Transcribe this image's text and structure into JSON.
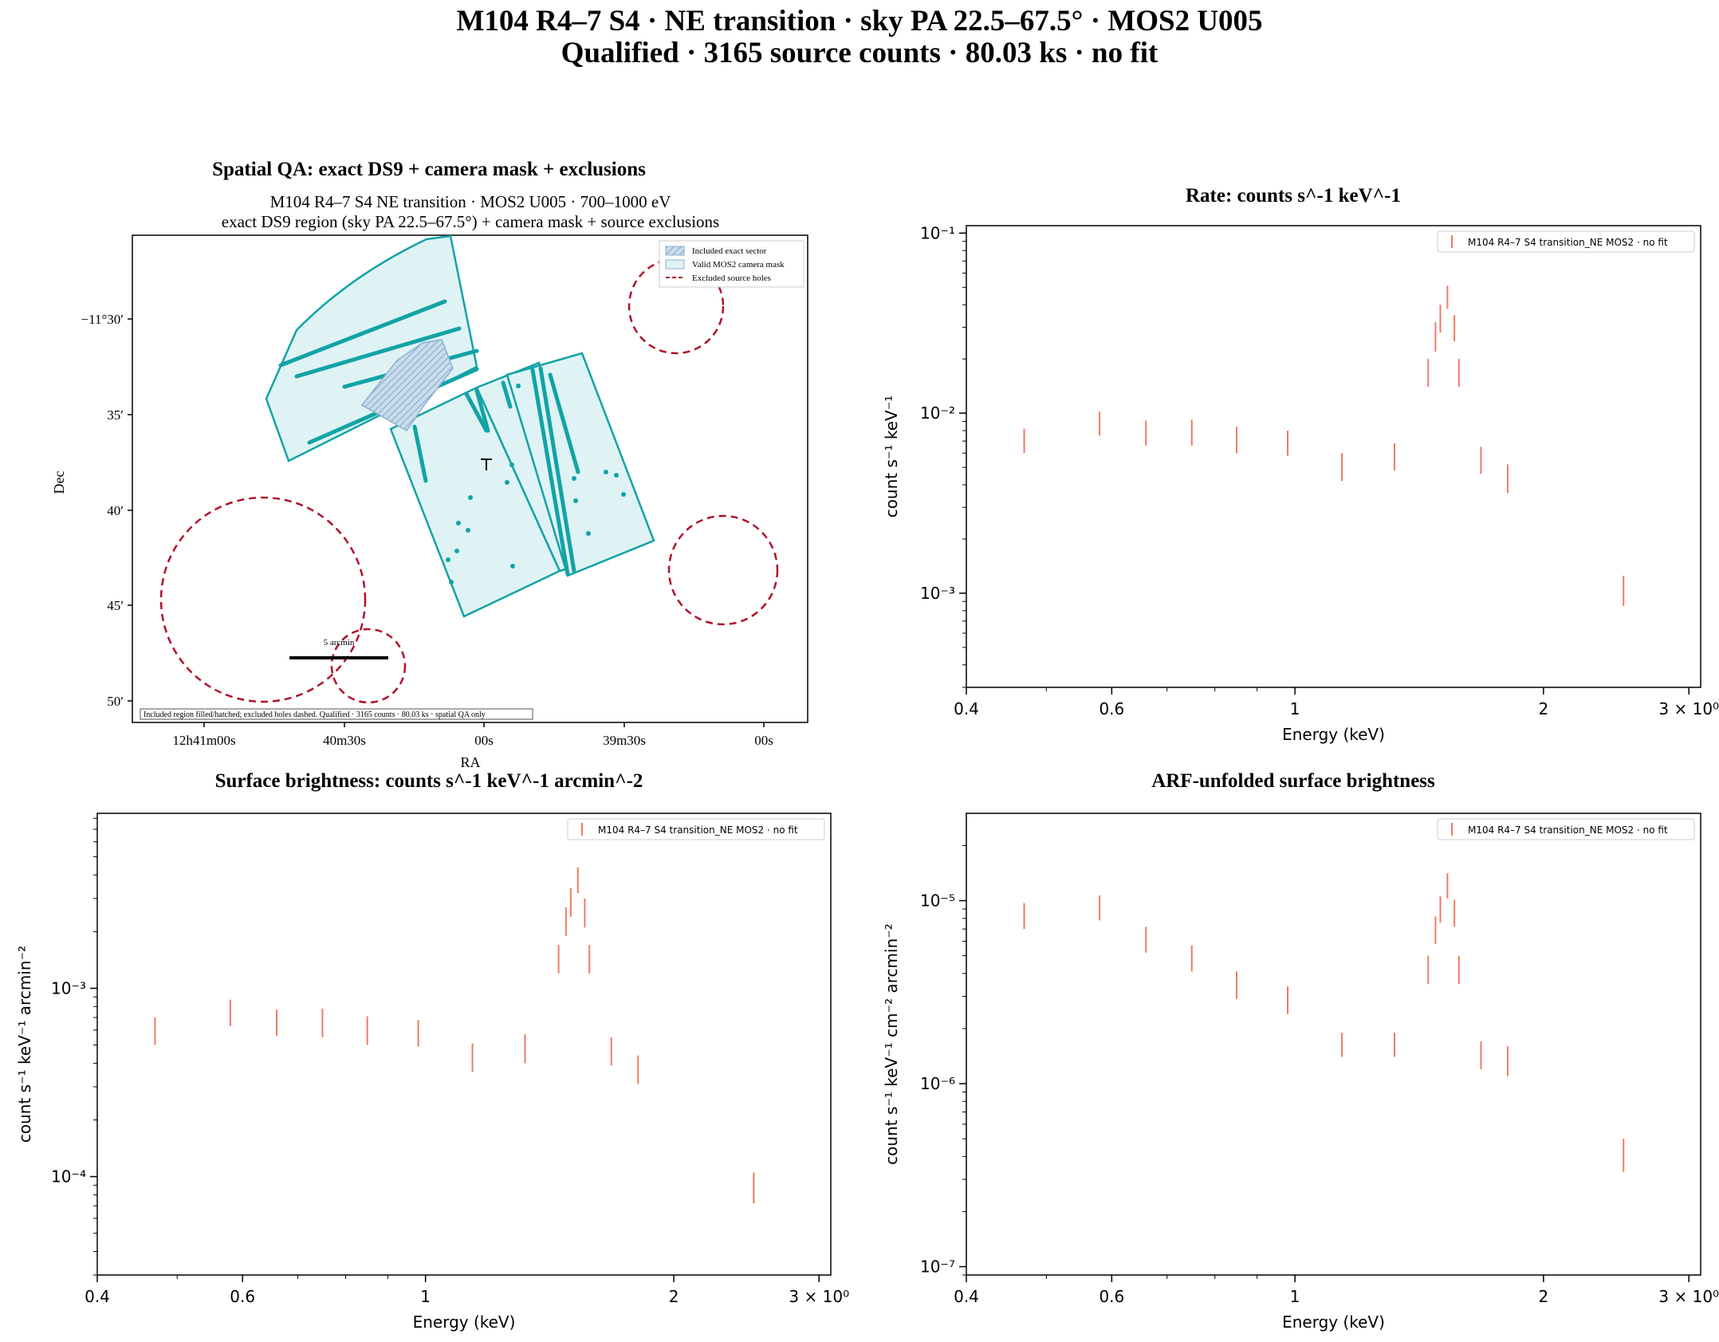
{
  "figure": {
    "title_line1": "M104 R4–7 S4 · NE transition · sky PA 22.5–67.5° · MOS2 U005",
    "title_line2": "Qualified · 3165 source counts · 80.03 ks · no fit"
  },
  "colors": {
    "teal": "#12a3a6",
    "teal_fill": "#dff3f5",
    "hatch_blue": "#8bb0cf",
    "exclusion_red": "#b0112a",
    "series_salmon": "#f07a63"
  },
  "spatial": {
    "title": "Spatial QA: exact DS9 + camera mask + exclusions",
    "subtitle_line1": "M104 R4–7 S4 NE transition · MOS2 U005 · 700–1000 eV",
    "subtitle_line2": "exact DS9 region (sky PA 22.5–67.5°) + camera mask + source exclusions",
    "xlabel": "RA",
    "ylabel": "Dec",
    "x_ticks": [
      "12h41m00s",
      "40m30s",
      "00s",
      "39m30s",
      "00s"
    ],
    "y_ticks": [
      "−11°30′",
      "35′",
      "40′",
      "45′",
      "50′"
    ],
    "legend": [
      "Included exact sector",
      "Valid MOS2 camera mask",
      "Excluded source holes"
    ],
    "scalebar_label": "5 arcmin",
    "footnote": "Included region filled/hatched; excluded holes dashed. Qualified · 3165 counts · 80.03 ks · spatial QA only"
  },
  "chart_data": [
    {
      "type": "scatter",
      "panel": "rate",
      "title": "Rate: counts s^-1 keV^-1",
      "xlabel": "Energy (keV)",
      "ylabel": "count s⁻¹ keV⁻¹",
      "xscale": "log",
      "yscale": "log",
      "xlim": [
        0.4,
        3.1
      ],
      "ylim": [
        0.0003,
        0.11
      ],
      "x_ticks": [
        0.4,
        0.6,
        1,
        2,
        3
      ],
      "x_tick_labels": [
        "0.4",
        "0.6",
        "1",
        "2",
        "3 × 10⁰"
      ],
      "y_ticks": [
        0.001,
        0.01,
        0.1
      ],
      "y_tick_labels": [
        "10⁻³",
        "10⁻²",
        "10⁻¹"
      ],
      "legend": "M104 R4–7 S4 transition_NE MOS2 · no fit",
      "legend_position": "top-right",
      "series": [
        {
          "name": "M104 R4–7 S4 transition_NE MOS2 · no fit",
          "x": [
            0.47,
            0.58,
            0.66,
            0.75,
            0.85,
            0.98,
            1.14,
            1.32,
            1.45,
            1.48,
            1.5,
            1.53,
            1.56,
            1.58,
            1.68,
            1.81,
            2.5
          ],
          "ylo": [
            0.006,
            0.0075,
            0.0066,
            0.0066,
            0.006,
            0.0058,
            0.0042,
            0.0048,
            0.014,
            0.022,
            0.028,
            0.038,
            0.025,
            0.014,
            0.0046,
            0.0036,
            0.00085
          ],
          "yhi": [
            0.0082,
            0.0102,
            0.0091,
            0.0092,
            0.0084,
            0.008,
            0.006,
            0.0068,
            0.02,
            0.032,
            0.04,
            0.051,
            0.035,
            0.02,
            0.0065,
            0.0052,
            0.00125
          ]
        }
      ]
    },
    {
      "type": "scatter",
      "panel": "surface_brightness",
      "title": "Surface brightness: counts s^-1 keV^-1 arcmin^-2",
      "xlabel": "Energy (keV)",
      "ylabel": "count s⁻¹ keV⁻¹ arcmin⁻²",
      "xscale": "log",
      "yscale": "log",
      "xlim": [
        0.4,
        3.1
      ],
      "ylim": [
        3e-05,
        0.0085
      ],
      "x_ticks": [
        0.4,
        0.6,
        1,
        2,
        3
      ],
      "x_tick_labels": [
        "0.4",
        "0.6",
        "1",
        "2",
        "3 × 10⁰"
      ],
      "y_ticks": [
        0.0001,
        0.001
      ],
      "y_tick_labels": [
        "10⁻⁴",
        "10⁻³"
      ],
      "legend": "M104 R4–7 S4 transition_NE MOS2 · no fit",
      "legend_position": "top-right",
      "series": [
        {
          "name": "M104 R4–7 S4 transition_NE MOS2 · no fit",
          "x": [
            0.47,
            0.58,
            0.66,
            0.75,
            0.85,
            0.98,
            1.14,
            1.32,
            1.45,
            1.48,
            1.5,
            1.53,
            1.56,
            1.58,
            1.68,
            1.81,
            2.5
          ],
          "ylo": [
            0.0005,
            0.00063,
            0.00056,
            0.00055,
            0.0005,
            0.00049,
            0.00036,
            0.0004,
            0.0012,
            0.0019,
            0.0024,
            0.0032,
            0.0021,
            0.0012,
            0.00039,
            0.00031,
            7.2e-05
          ],
          "yhi": [
            0.0007,
            0.00087,
            0.00077,
            0.00078,
            0.00071,
            0.00068,
            0.00051,
            0.00057,
            0.0017,
            0.0027,
            0.0034,
            0.0044,
            0.003,
            0.0017,
            0.00055,
            0.00044,
            0.000105
          ]
        }
      ]
    },
    {
      "type": "scatter",
      "panel": "arf_unfolded",
      "title": "ARF-unfolded surface brightness",
      "xlabel": "Energy (keV)",
      "ylabel": "count s⁻¹ keV⁻¹ cm⁻² arcmin⁻²",
      "xscale": "log",
      "yscale": "log",
      "xlim": [
        0.4,
        3.1
      ],
      "ylim": [
        9e-08,
        3e-05
      ],
      "x_ticks": [
        0.4,
        0.6,
        1,
        2,
        3
      ],
      "x_tick_labels": [
        "0.4",
        "0.6",
        "1",
        "2",
        "3 × 10⁰"
      ],
      "y_ticks": [
        1e-07,
        1e-06,
        1e-05
      ],
      "y_tick_labels": [
        "10⁻⁷",
        "10⁻⁶",
        "10⁻⁵"
      ],
      "legend": "M104 R4–7 S4 transition_NE MOS2 · no fit",
      "legend_position": "top-right",
      "series": [
        {
          "name": "M104 R4–7 S4 transition_NE MOS2 · no fit",
          "x": [
            0.47,
            0.58,
            0.66,
            0.75,
            0.85,
            0.98,
            1.14,
            1.32,
            1.45,
            1.48,
            1.5,
            1.53,
            1.56,
            1.58,
            1.68,
            1.81,
            2.5
          ],
          "ylo": [
            7e-06,
            7.8e-06,
            5.2e-06,
            4.1e-06,
            2.9e-06,
            2.4e-06,
            1.4e-06,
            1.4e-06,
            3.5e-06,
            5.8e-06,
            7.6e-06,
            1.03e-05,
            7.2e-06,
            3.5e-06,
            1.2e-06,
            1.1e-06,
            3.3e-07
          ],
          "yhi": [
            9.7e-06,
            1.07e-05,
            7.2e-06,
            5.7e-06,
            4.1e-06,
            3.4e-06,
            1.9e-06,
            1.9e-06,
            5e-06,
            8.2e-06,
            1.06e-05,
            1.41e-05,
            1.01e-05,
            5e-06,
            1.7e-06,
            1.6e-06,
            5e-07
          ]
        }
      ]
    }
  ]
}
